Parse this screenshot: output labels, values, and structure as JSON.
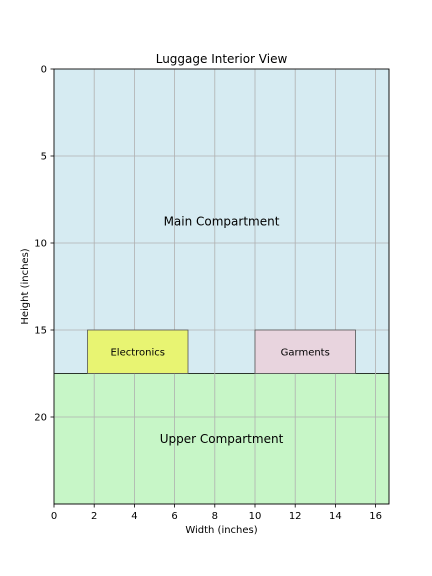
{
  "chart_data": {
    "type": "diagram",
    "title": "Luggage Interior View",
    "xlabel": "Width (inches)",
    "ylabel": "Height (inches)",
    "xlim": [
      0,
      16.667
    ],
    "ylim": [
      0,
      25
    ],
    "y_inverted": true,
    "grid": true,
    "xticks": [
      0,
      2,
      4,
      6,
      8,
      10,
      12,
      14,
      16
    ],
    "yticks": [
      0,
      5,
      10,
      15,
      20
    ],
    "regions": [
      {
        "label": "Main Compartment",
        "x": [
          0,
          16.667
        ],
        "y": [
          0,
          17.5
        ],
        "color": "#add8e6"
      },
      {
        "label": "Upper Compartment",
        "x": [
          0,
          16.667
        ],
        "y": [
          17.5,
          25
        ],
        "color": "#90ee90"
      }
    ],
    "items": [
      {
        "label": "Electronics",
        "x": [
          1.667,
          6.667
        ],
        "y": [
          15,
          17.5
        ],
        "color": "#e8f472"
      },
      {
        "label": "Garments",
        "x": [
          10,
          15
        ],
        "y": [
          15,
          17.5
        ],
        "color": "#e8d4de"
      }
    ]
  }
}
